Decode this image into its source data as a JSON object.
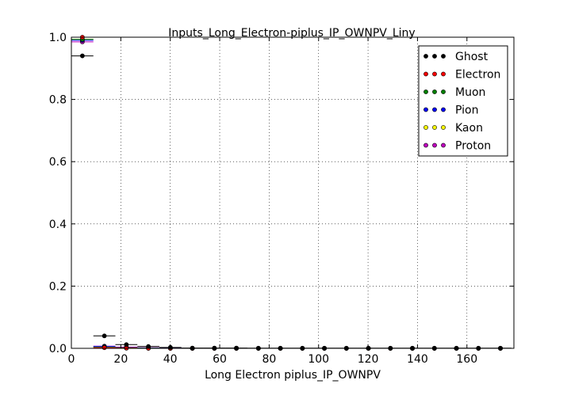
{
  "chart_data": {
    "type": "scatter",
    "title": "Inputs_Long_Electron-piplus_IP_OWNPV_Liny",
    "xlabel": "Long Electron piplus_IP_OWNPV",
    "ylabel": "",
    "xlim": [
      0,
      179
    ],
    "ylim": [
      0,
      1.0
    ],
    "x_ticks": [
      0,
      20,
      40,
      60,
      80,
      100,
      120,
      140,
      160
    ],
    "y_ticks": [
      0.0,
      0.2,
      0.4,
      0.6,
      0.8,
      1.0
    ],
    "x_tick_labels": [
      "0",
      "20",
      "40",
      "60",
      "80",
      "100",
      "120",
      "140",
      "160"
    ],
    "y_tick_labels": [
      "0.0",
      "0.2",
      "0.4",
      "0.6",
      "0.8",
      "1.0"
    ],
    "grid": true,
    "legend_position": "top-right",
    "x_bin_half_width": 4.45,
    "x": [
      4.45,
      13.35,
      22.25,
      31.15,
      40.05,
      48.95,
      57.85,
      66.75,
      75.65,
      84.55,
      93.45,
      102.35,
      111.25,
      120.15,
      129.05,
      137.95,
      146.85,
      155.75,
      164.65,
      173.55
    ],
    "series": [
      {
        "name": "Ghost",
        "color": "#000000",
        "values": [
          0.94,
          0.04,
          0.012,
          0.006,
          0.003,
          0.001,
          0.001,
          0.001,
          0.0005,
          0.0005,
          0.0005,
          0.0005,
          0.0005,
          0.0005,
          0.0005,
          0.0005,
          0.0005,
          0.0005,
          0.0005,
          0.0005
        ]
      },
      {
        "name": "Electron",
        "color": "#ff0000",
        "values": [
          1.0,
          0.002,
          0.0005,
          0.0,
          0.0,
          0.0,
          0.0,
          0.0,
          0.0,
          0.0,
          0.0,
          0.0,
          0.0,
          0.0,
          0.0,
          0.0,
          0.0,
          0.0,
          0.0,
          0.0
        ]
      },
      {
        "name": "Muon",
        "color": "#008000",
        "values": [
          0.993,
          0.004,
          0.002,
          0.0005,
          0.0,
          0.0,
          0.0,
          0.0,
          0.0,
          0.0,
          0.0,
          0.0,
          0.0,
          0.0,
          0.0,
          0.0,
          0.0,
          0.0,
          0.0,
          0.0
        ]
      },
      {
        "name": "Pion",
        "color": "#0000ff",
        "values": [
          0.99,
          0.006,
          0.002,
          0.001,
          0.0005,
          0.0,
          0.0,
          0.0,
          0.0,
          0.0,
          0.0,
          0.0,
          0.0,
          0.0,
          0.0,
          0.0,
          0.0,
          0.0,
          0.0,
          0.0
        ]
      },
      {
        "name": "Kaon",
        "color": "#ffff00",
        "values": [
          0.993,
          0.005,
          0.001,
          0.0005,
          0.0,
          0.0,
          0.0,
          0.0,
          0.0,
          0.0,
          0.0,
          0.0,
          0.0,
          0.0,
          0.0,
          0.0,
          0.0,
          0.0,
          0.0,
          0.0
        ]
      },
      {
        "name": "Proton",
        "color": "#bf00bf",
        "values": [
          0.985,
          0.007,
          0.004,
          0.002,
          0.0005,
          0.0,
          0.0,
          0.0,
          0.0,
          0.0,
          0.0,
          0.0,
          0.0,
          0.0,
          0.0,
          0.0,
          0.0,
          0.0,
          0.0,
          0.0
        ]
      }
    ]
  }
}
